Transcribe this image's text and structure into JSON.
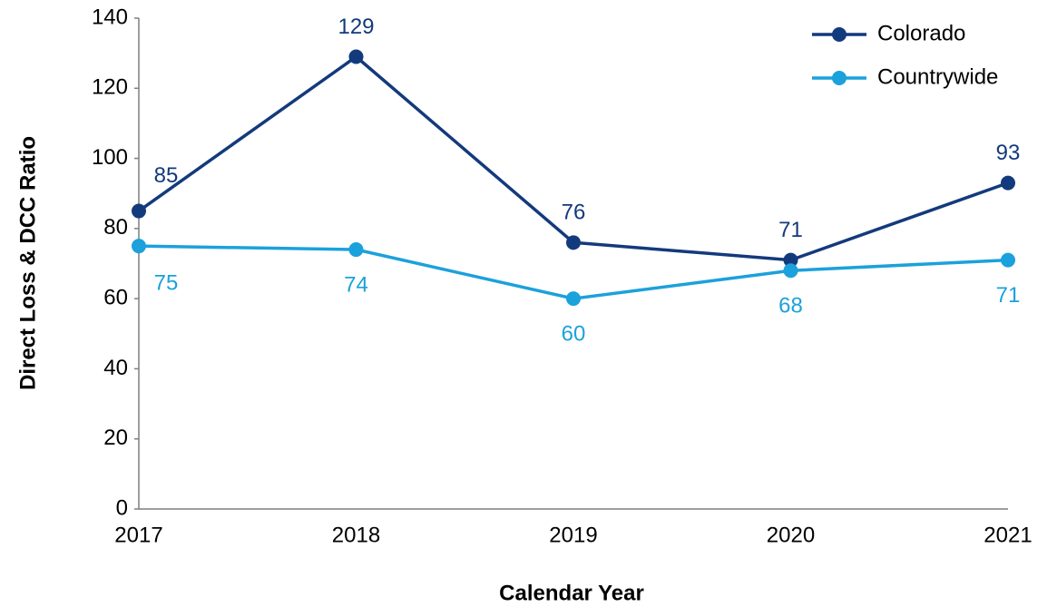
{
  "chart_data": {
    "type": "line",
    "x_label": "Calendar Year",
    "y_label": "Direct Loss & DCC Ratio",
    "categories": [
      "2017",
      "2018",
      "2019",
      "2020",
      "2021"
    ],
    "series": [
      {
        "name": "Colorado",
        "color": "#133a7c",
        "values": [
          85,
          129,
          76,
          71,
          93
        ]
      },
      {
        "name": "Countrywide",
        "color": "#1ba1dc",
        "values": [
          75,
          74,
          60,
          68,
          71
        ]
      }
    ],
    "ylim": [
      0,
      140
    ],
    "yticks": [
      0,
      20,
      40,
      60,
      80,
      100,
      120,
      140
    ],
    "legend": "upper right",
    "grid": false
  }
}
